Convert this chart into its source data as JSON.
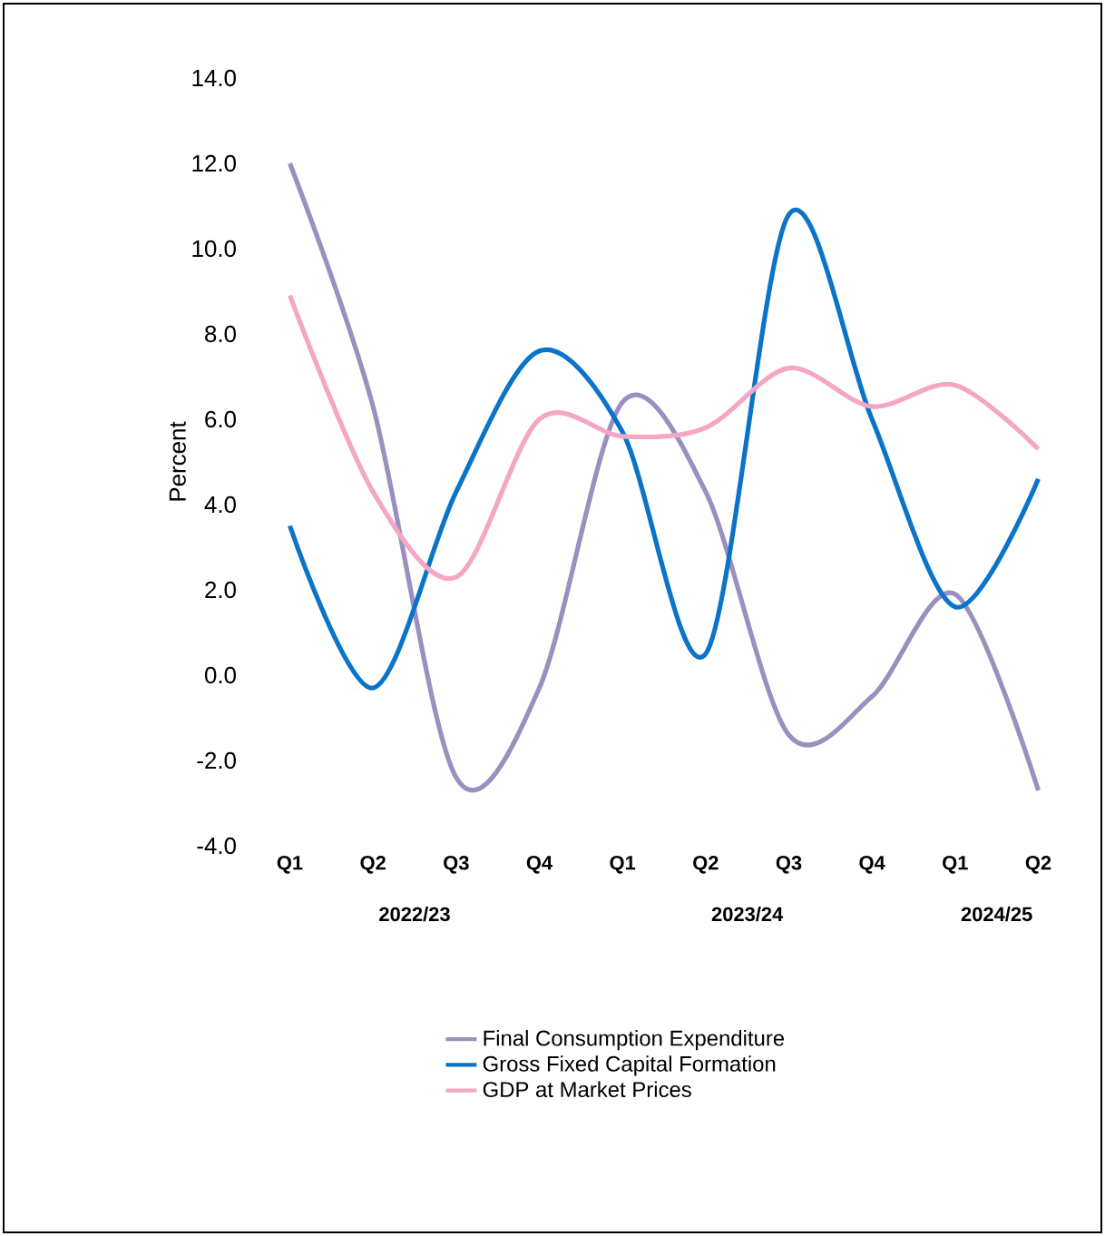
{
  "chart_data": {
    "type": "line",
    "ylabel": "Percent",
    "categories": [
      "Q1",
      "Q2",
      "Q3",
      "Q4",
      "Q1",
      "Q2",
      "Q3",
      "Q4",
      "Q1",
      "Q2"
    ],
    "series": [
      {
        "name": "Final Consumption Expenditure",
        "color": "#9b8fc0",
        "values": [
          12.0,
          6.3,
          -2.4,
          -0.3,
          6.4,
          4.3,
          -1.4,
          -0.5,
          1.9,
          -2.7
        ]
      },
      {
        "name": "Gross Fixed Capital Formation",
        "color": "#0a74c9",
        "values": [
          3.5,
          -0.3,
          4.3,
          7.6,
          5.7,
          0.5,
          10.8,
          6.0,
          1.6,
          4.6
        ]
      },
      {
        "name": "GDP at Market Prices",
        "color": "#f4a6c4",
        "values": [
          8.9,
          4.3,
          2.3,
          6.0,
          5.6,
          5.8,
          7.2,
          6.3,
          6.8,
          5.3
        ]
      }
    ],
    "ylim": [
      -4,
      14
    ],
    "yticks": [
      {
        "value": -4,
        "label": "-4.0"
      },
      {
        "value": -2,
        "label": "-2.0"
      },
      {
        "value": 0,
        "label": "0.0"
      },
      {
        "value": 2,
        "label": "2.0"
      },
      {
        "value": 4,
        "label": "4.0"
      },
      {
        "value": 6,
        "label": "6.0"
      },
      {
        "value": 8,
        "label": "8.0"
      },
      {
        "value": 10,
        "label": "10.0"
      },
      {
        "value": 12,
        "label": "12.0"
      },
      {
        "value": 14,
        "label": "14.0"
      }
    ],
    "annotations": [
      "2022/23",
      "2023/24",
      "2024/25"
    ],
    "legend": "bottom",
    "grid": false,
    "marker": "none",
    "line_style": "solid"
  }
}
